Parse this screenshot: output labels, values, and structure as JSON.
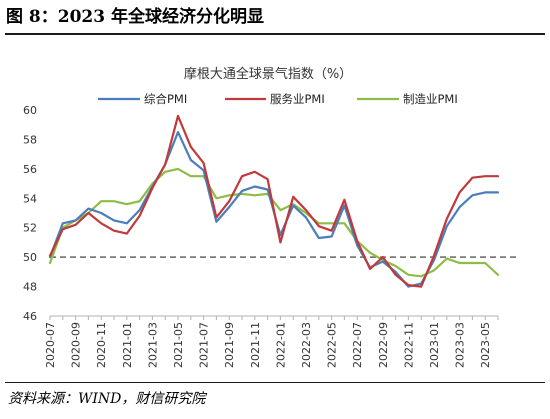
{
  "figure": {
    "title": "图 8：2023 年全球经济分化明显",
    "source": "资料来源：WIND，财信研究院"
  },
  "chart_data": {
    "type": "line",
    "title": "摩根大通全球景气指数（%）",
    "xlabel": "",
    "ylabel": "",
    "ylim": [
      46,
      60
    ],
    "yticks": [
      46,
      48,
      50,
      52,
      54,
      56,
      58,
      60
    ],
    "reference_line": 50,
    "legend_position": "top",
    "grid": false,
    "x": [
      "2020-07",
      "2020-08",
      "2020-09",
      "2020-10",
      "2020-11",
      "2020-12",
      "2021-01",
      "2021-02",
      "2021-03",
      "2021-04",
      "2021-05",
      "2021-06",
      "2021-07",
      "2021-08",
      "2021-09",
      "2021-10",
      "2021-11",
      "2021-12",
      "2022-01",
      "2022-02",
      "2022-03",
      "2022-04",
      "2022-05",
      "2022-06",
      "2022-07",
      "2022-08",
      "2022-09",
      "2022-10",
      "2022-11",
      "2022-12",
      "2023-01",
      "2023-02",
      "2023-03",
      "2023-04",
      "2023-05",
      "2023-06"
    ],
    "x_tick_labels": [
      "2020-07",
      "2020-09",
      "2020-11",
      "2021-01",
      "2021-03",
      "2021-05",
      "2021-07",
      "2021-09",
      "2021-11",
      "2022-01",
      "2022-03",
      "2022-05",
      "2022-07",
      "2022-09",
      "2022-11",
      "2023-01",
      "2023-03",
      "2023-05"
    ],
    "series": [
      {
        "name": "综合PMI",
        "color": "#4a7ebb",
        "values": [
          50.0,
          52.3,
          52.5,
          53.3,
          53.0,
          52.5,
          52.3,
          53.2,
          54.8,
          56.3,
          58.5,
          56.6,
          55.9,
          52.4,
          53.4,
          54.5,
          54.8,
          54.6,
          51.5,
          53.5,
          52.7,
          51.3,
          51.4,
          53.5,
          50.8,
          49.3,
          49.7,
          49.0,
          48.0,
          48.2,
          49.8,
          52.1,
          53.4,
          54.2,
          54.4,
          54.4
        ]
      },
      {
        "name": "服务业PMI",
        "color": "#c0393b",
        "values": [
          50.1,
          51.9,
          52.2,
          53.0,
          52.3,
          51.8,
          51.6,
          52.8,
          54.7,
          56.3,
          59.6,
          57.5,
          56.4,
          52.7,
          53.8,
          55.5,
          55.8,
          55.3,
          51.0,
          54.1,
          53.2,
          52.1,
          51.8,
          53.9,
          51.1,
          49.2,
          50.0,
          48.8,
          48.1,
          48.0,
          50.1,
          52.6,
          54.4,
          55.4,
          55.5,
          55.5
        ]
      },
      {
        "name": "制造业PMI",
        "color": "#8fbc45",
        "values": [
          49.6,
          52.0,
          52.5,
          53.0,
          53.8,
          53.8,
          53.6,
          53.8,
          55.0,
          55.8,
          56.0,
          55.5,
          55.5,
          54.0,
          54.2,
          54.3,
          54.2,
          54.3,
          53.2,
          53.6,
          53.0,
          52.3,
          52.3,
          52.3,
          51.1,
          50.3,
          49.8,
          49.4,
          48.8,
          48.7,
          49.1,
          49.9,
          49.6,
          49.6,
          49.6,
          48.8
        ]
      }
    ]
  }
}
